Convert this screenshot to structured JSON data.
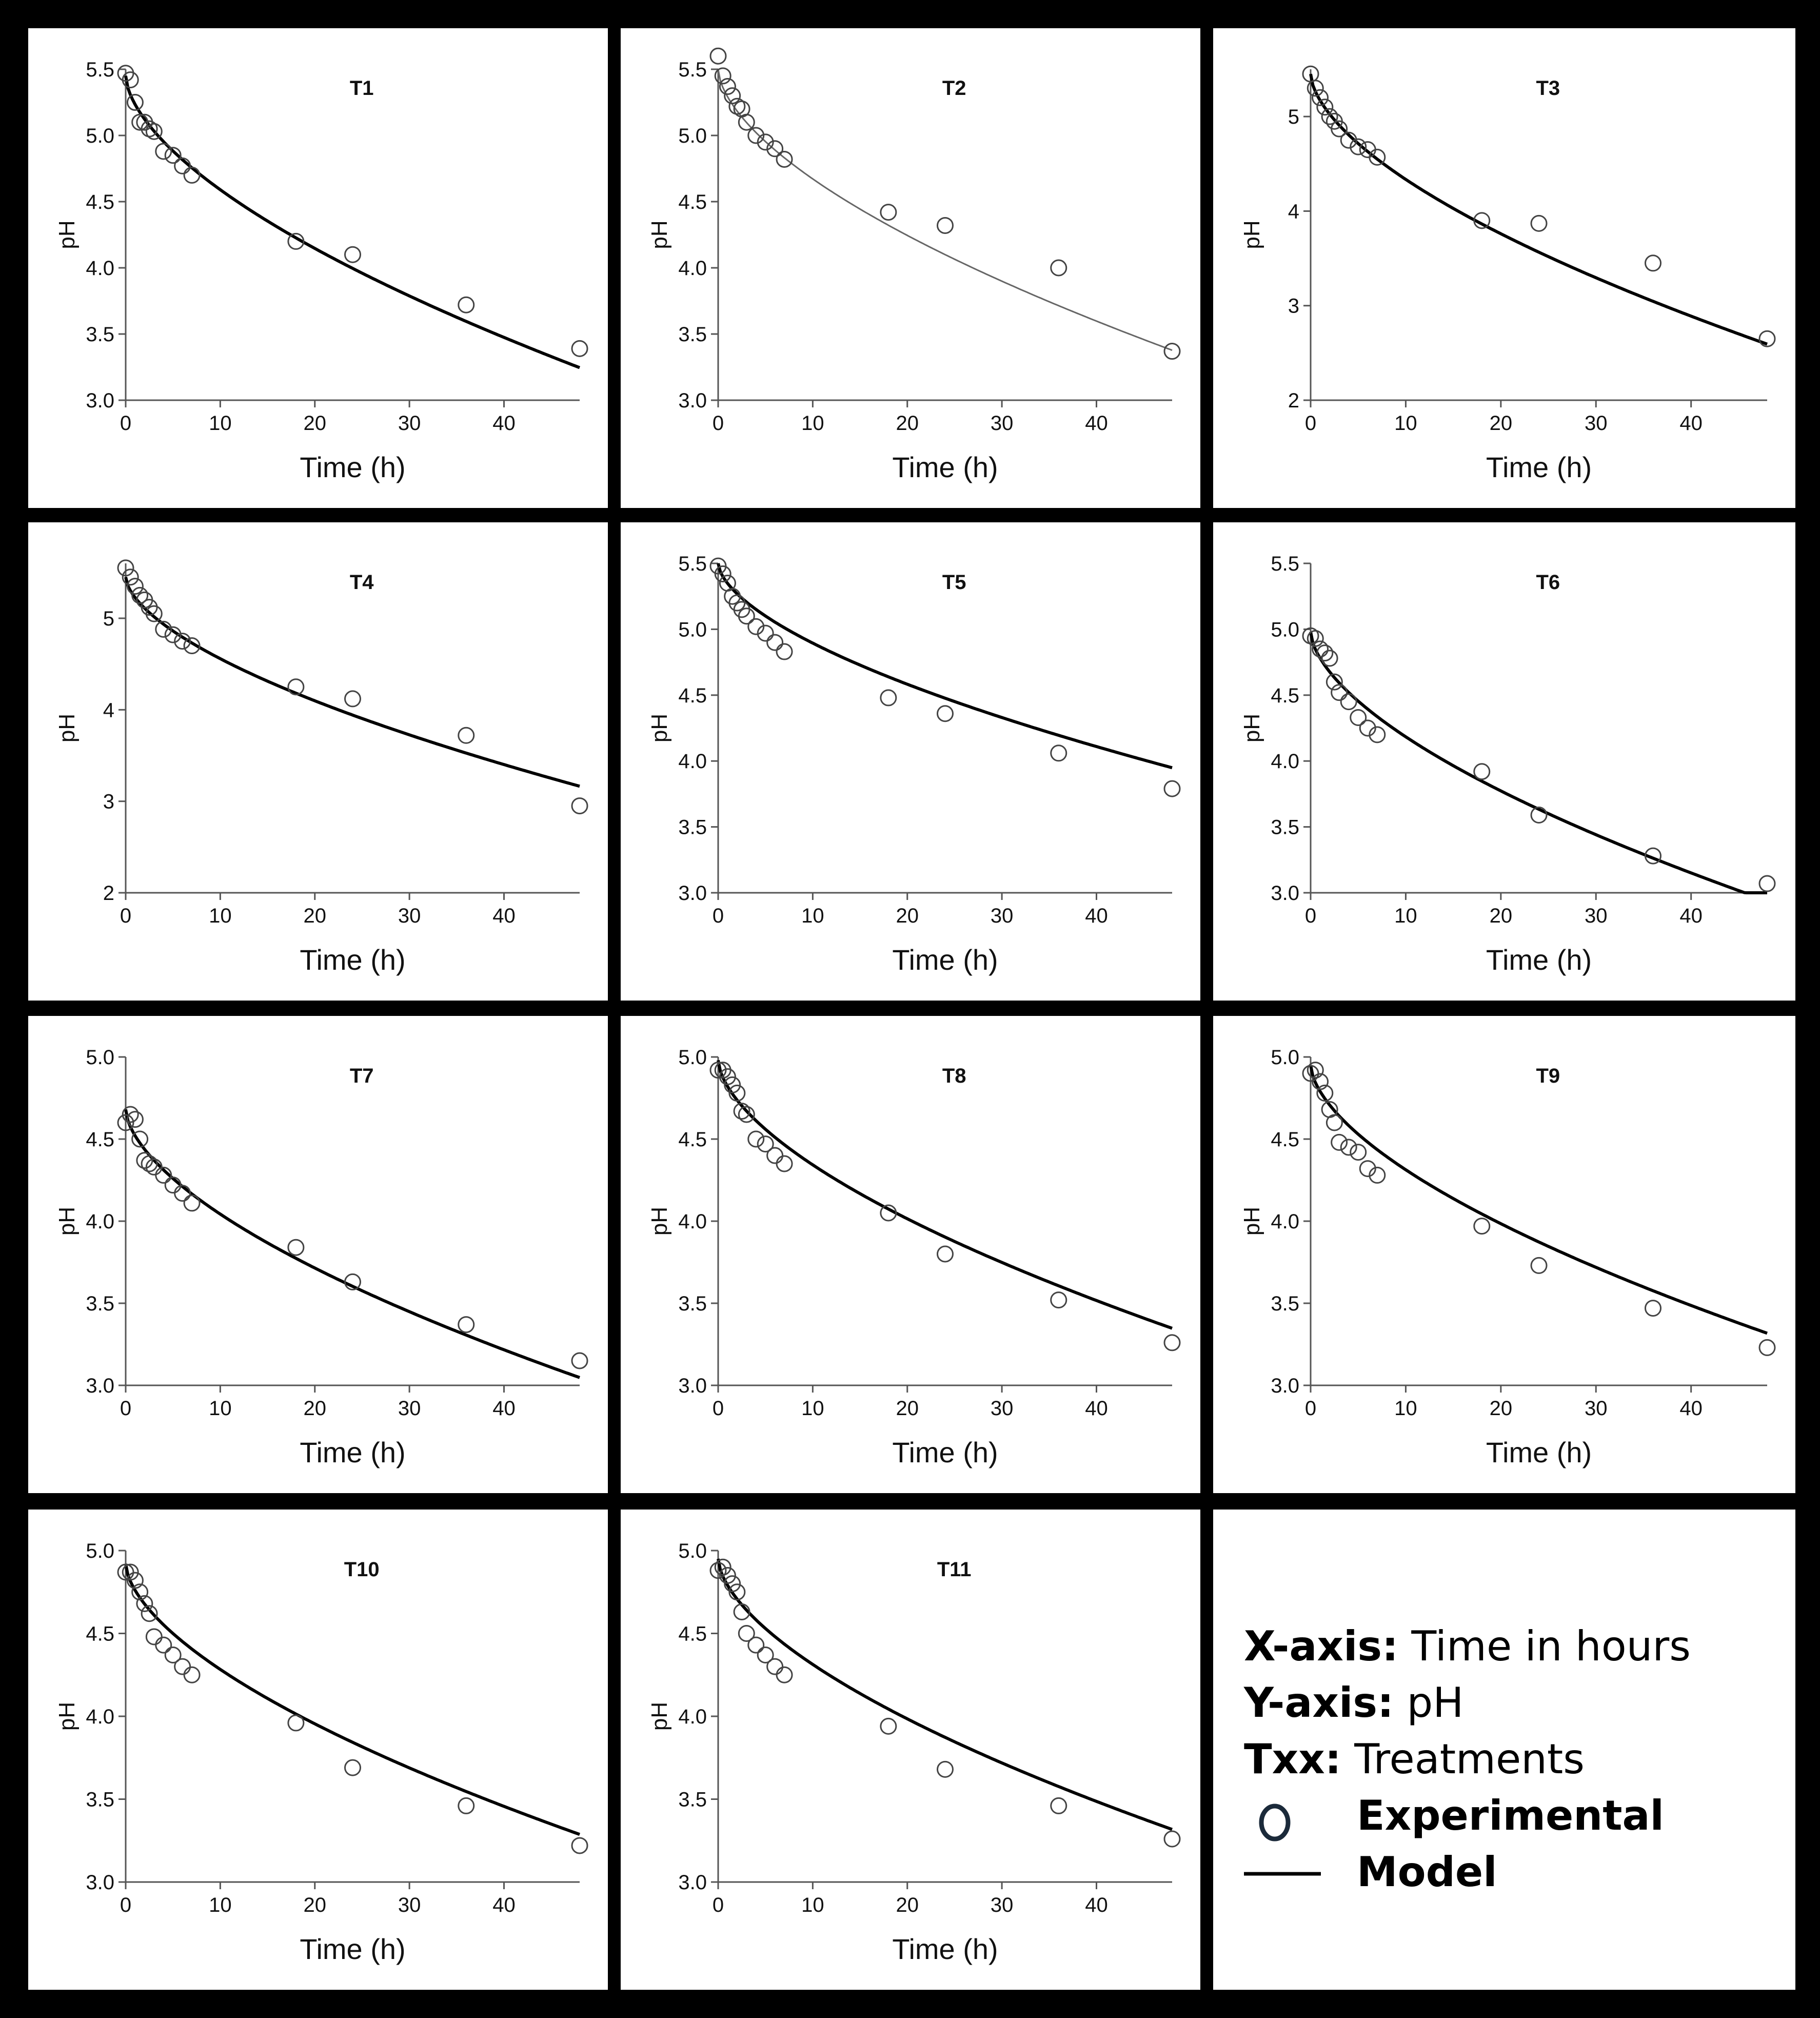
{
  "legend": {
    "xaxis_key": "X-axis:",
    "xaxis_value": "Time in hours",
    "yaxis_key": "Y-axis:",
    "yaxis_value": "pH",
    "txx_key": "Txx:",
    "txx_value": "Treatments",
    "experimental_label": "Experimental",
    "model_label": "Model",
    "marker_color": "#1b2a3a"
  },
  "chart_data": [
    {
      "type": "scatter",
      "title": "T1",
      "xlabel": "Time (h)",
      "ylabel": "pH",
      "xlim": [
        0,
        48
      ],
      "ylim": [
        3.0,
        5.5
      ],
      "xticks": [
        0,
        10,
        20,
        30,
        40
      ],
      "yticks": [
        3.0,
        3.5,
        4.0,
        4.5,
        5.0,
        5.5
      ],
      "ytick_labels": [
        "3.0",
        "3.5",
        "4.0",
        "4.5",
        "5.0",
        "5.5"
      ],
      "experimental": {
        "x": [
          0,
          0.5,
          1,
          1.5,
          2,
          2.5,
          3,
          4,
          5,
          6,
          7,
          18,
          24,
          36,
          48
        ],
        "y": [
          5.47,
          5.42,
          5.25,
          5.1,
          5.1,
          5.05,
          5.03,
          4.88,
          4.85,
          4.77,
          4.7,
          4.2,
          4.1,
          3.72,
          3.39
        ]
      },
      "model": {
        "a": 5.45,
        "b": 0.135,
        "c": 0.6
      }
    },
    {
      "type": "scatter",
      "title": "T2",
      "xlabel": "Time (h)",
      "ylabel": "pH",
      "xlim": [
        0,
        48
      ],
      "ylim": [
        3.0,
        5.5
      ],
      "xticks": [
        0,
        10,
        20,
        30,
        40
      ],
      "yticks": [
        3.0,
        3.5,
        4.0,
        4.5,
        5.0,
        5.5
      ],
      "ytick_labels": [
        "3.0",
        "3.5",
        "4.0",
        "4.5",
        "5.0",
        "5.5"
      ],
      "experimental": {
        "x": [
          0,
          0.5,
          1,
          1.5,
          2,
          2.5,
          3,
          4,
          5,
          6,
          7,
          18,
          24,
          36,
          48
        ],
        "y": [
          5.6,
          5.45,
          5.37,
          5.3,
          5.22,
          5.2,
          5.1,
          5.0,
          4.95,
          4.9,
          4.82,
          4.42,
          4.32,
          4.0,
          3.37
        ]
      },
      "model": {
        "a": 5.5,
        "b": 0.13,
        "c": 0.6
      }
    },
    {
      "type": "scatter",
      "title": "T3",
      "xlabel": "Time (h)",
      "ylabel": "pH",
      "xlim": [
        0,
        48
      ],
      "ylim": [
        2,
        5.5
      ],
      "xticks": [
        0,
        10,
        20,
        30,
        40
      ],
      "yticks": [
        2,
        3,
        4,
        5
      ],
      "ytick_labels": [
        "2",
        "3",
        "4",
        "5"
      ],
      "experimental": {
        "x": [
          0,
          0.5,
          1,
          1.5,
          2,
          2.5,
          3,
          4,
          5,
          6,
          7,
          18,
          24,
          36,
          48
        ],
        "y": [
          5.45,
          5.3,
          5.2,
          5.1,
          5.0,
          4.95,
          4.87,
          4.75,
          4.68,
          4.65,
          4.57,
          3.9,
          3.87,
          3.45,
          2.65
        ]
      },
      "model": {
        "a": 5.45,
        "b": 0.175,
        "c": 0.6
      }
    },
    {
      "type": "scatter",
      "title": "T4",
      "xlabel": "Time (h)",
      "ylabel": "pH",
      "xlim": [
        0,
        48
      ],
      "ylim": [
        2,
        5.6
      ],
      "xticks": [
        0,
        10,
        20,
        30,
        40
      ],
      "yticks": [
        2,
        3,
        4,
        5
      ],
      "ytick_labels": [
        "2",
        "3",
        "4",
        "5"
      ],
      "experimental": {
        "x": [
          0,
          0.5,
          1,
          1.5,
          2,
          2.5,
          3,
          4,
          5,
          6,
          7,
          18,
          24,
          36,
          48
        ],
        "y": [
          5.55,
          5.45,
          5.35,
          5.25,
          5.2,
          5.12,
          5.05,
          4.88,
          4.82,
          4.75,
          4.7,
          4.25,
          4.12,
          3.72,
          2.95
        ]
      },
      "model": {
        "a": 5.45,
        "b": 0.14,
        "c": 0.6
      }
    },
    {
      "type": "scatter",
      "title": "T5",
      "xlabel": "Time (h)",
      "ylabel": "pH",
      "xlim": [
        0,
        48
      ],
      "ylim": [
        3.0,
        5.5
      ],
      "xticks": [
        0,
        10,
        20,
        30,
        40
      ],
      "yticks": [
        3.0,
        3.5,
        4.0,
        4.5,
        5.0,
        5.5
      ],
      "ytick_labels": [
        "3.0",
        "3.5",
        "4.0",
        "4.5",
        "5.0",
        "5.5"
      ],
      "experimental": {
        "x": [
          0,
          0.5,
          1,
          1.5,
          2,
          2.5,
          3,
          4,
          5,
          6,
          7,
          18,
          24,
          36,
          48
        ],
        "y": [
          5.48,
          5.42,
          5.35,
          5.25,
          5.2,
          5.15,
          5.1,
          5.02,
          4.97,
          4.9,
          4.83,
          4.48,
          4.36,
          4.06,
          3.79
        ]
      },
      "model": {
        "a": 5.5,
        "b": 0.095,
        "c": 0.6
      }
    },
    {
      "type": "scatter",
      "title": "T6",
      "xlabel": "Time (h)",
      "ylabel": "pH",
      "xlim": [
        0,
        48
      ],
      "ylim": [
        3.0,
        5.5
      ],
      "xticks": [
        0,
        10,
        20,
        30,
        40
      ],
      "yticks": [
        3.0,
        3.5,
        4.0,
        4.5,
        5.0,
        5.5
      ],
      "ytick_labels": [
        "3.0",
        "3.5",
        "4.0",
        "4.5",
        "5.0",
        "5.5"
      ],
      "experimental": {
        "x": [
          0,
          0.5,
          1,
          1.5,
          2,
          2.5,
          3,
          4,
          5,
          6,
          7,
          18,
          24,
          36,
          48
        ],
        "y": [
          4.95,
          4.93,
          4.85,
          4.82,
          4.78,
          4.6,
          4.52,
          4.45,
          4.33,
          4.25,
          4.2,
          3.92,
          3.59,
          3.28,
          3.07
        ]
      },
      "model": {
        "a": 4.98,
        "b": 0.125,
        "c": 0.6
      }
    },
    {
      "type": "scatter",
      "title": "T7",
      "xlabel": "Time (h)",
      "ylabel": "pH",
      "xlim": [
        0,
        48
      ],
      "ylim": [
        3.0,
        5.0
      ],
      "xticks": [
        0,
        10,
        20,
        30,
        40
      ],
      "yticks": [
        3.0,
        3.5,
        4.0,
        4.5,
        5.0
      ],
      "ytick_labels": [
        "3.0",
        "3.5",
        "4.0",
        "4.5",
        "5.0"
      ],
      "experimental": {
        "x": [
          0,
          0.5,
          1,
          1.5,
          2,
          2.5,
          3,
          4,
          5,
          6,
          7,
          18,
          24,
          36,
          48
        ],
        "y": [
          4.6,
          4.65,
          4.62,
          4.5,
          4.37,
          4.35,
          4.33,
          4.28,
          4.22,
          4.17,
          4.11,
          3.84,
          3.63,
          3.37,
          3.15
        ]
      },
      "model": {
        "a": 4.68,
        "b": 0.1,
        "c": 0.6
      }
    },
    {
      "type": "scatter",
      "title": "T8",
      "xlabel": "Time (h)",
      "ylabel": "pH",
      "xlim": [
        0,
        48
      ],
      "ylim": [
        3.0,
        5.0
      ],
      "xticks": [
        0,
        10,
        20,
        30,
        40
      ],
      "yticks": [
        3.0,
        3.5,
        4.0,
        4.5,
        5.0
      ],
      "ytick_labels": [
        "3.0",
        "3.5",
        "4.0",
        "4.5",
        "5.0"
      ],
      "experimental": {
        "x": [
          0,
          0.5,
          1,
          1.5,
          2,
          2.5,
          3,
          4,
          5,
          6,
          7,
          18,
          24,
          36,
          48
        ],
        "y": [
          4.92,
          4.92,
          4.88,
          4.83,
          4.78,
          4.67,
          4.65,
          4.5,
          4.47,
          4.4,
          4.35,
          4.05,
          3.8,
          3.52,
          3.26
        ]
      },
      "model": {
        "a": 4.98,
        "b": 0.1,
        "c": 0.6
      }
    },
    {
      "type": "scatter",
      "title": "T9",
      "xlabel": "Time (h)",
      "ylabel": "pH",
      "xlim": [
        0,
        48
      ],
      "ylim": [
        3.0,
        5.0
      ],
      "xticks": [
        0,
        10,
        20,
        30,
        40
      ],
      "yticks": [
        3.0,
        3.5,
        4.0,
        4.5,
        5.0
      ],
      "ytick_labels": [
        "3.0",
        "3.5",
        "4.0",
        "4.5",
        "5.0"
      ],
      "experimental": {
        "x": [
          0,
          0.5,
          1,
          1.5,
          2,
          2.5,
          3,
          4,
          5,
          6,
          7,
          18,
          24,
          36,
          48
        ],
        "y": [
          4.9,
          4.92,
          4.85,
          4.78,
          4.68,
          4.6,
          4.48,
          4.45,
          4.42,
          4.32,
          4.28,
          3.97,
          3.73,
          3.47,
          3.23
        ]
      },
      "model": {
        "a": 4.95,
        "b": 0.1,
        "c": 0.6
      }
    },
    {
      "type": "scatter",
      "title": "T10",
      "xlabel": "Time (h)",
      "ylabel": "pH",
      "xlim": [
        0,
        48
      ],
      "ylim": [
        3.0,
        5.0
      ],
      "xticks": [
        0,
        10,
        20,
        30,
        40
      ],
      "yticks": [
        3.0,
        3.5,
        4.0,
        4.5,
        5.0
      ],
      "ytick_labels": [
        "3.0",
        "3.5",
        "4.0",
        "4.5",
        "5.0"
      ],
      "experimental": {
        "x": [
          0,
          0.5,
          1,
          1.5,
          2,
          2.5,
          3,
          4,
          5,
          6,
          7,
          18,
          24,
          36,
          48
        ],
        "y": [
          4.87,
          4.87,
          4.82,
          4.75,
          4.68,
          4.62,
          4.48,
          4.43,
          4.37,
          4.3,
          4.25,
          3.96,
          3.69,
          3.46,
          3.22
        ]
      },
      "model": {
        "a": 4.92,
        "b": 0.1,
        "c": 0.6
      }
    },
    {
      "type": "scatter",
      "title": "T11",
      "xlabel": "Time (h)",
      "ylabel": "pH",
      "xlim": [
        0,
        48
      ],
      "ylim": [
        3.0,
        5.0
      ],
      "xticks": [
        0,
        10,
        20,
        30,
        40
      ],
      "yticks": [
        3.0,
        3.5,
        4.0,
        4.5,
        5.0
      ],
      "ytick_labels": [
        "3.0",
        "3.5",
        "4.0",
        "4.5",
        "5.0"
      ],
      "experimental": {
        "x": [
          0,
          0.5,
          1,
          1.5,
          2,
          2.5,
          3,
          4,
          5,
          6,
          7,
          18,
          24,
          36,
          48
        ],
        "y": [
          4.88,
          4.9,
          4.85,
          4.8,
          4.75,
          4.63,
          4.5,
          4.43,
          4.37,
          4.3,
          4.25,
          3.94,
          3.68,
          3.46,
          3.26
        ]
      },
      "model": {
        "a": 4.95,
        "b": 0.1,
        "c": 0.6
      }
    }
  ]
}
